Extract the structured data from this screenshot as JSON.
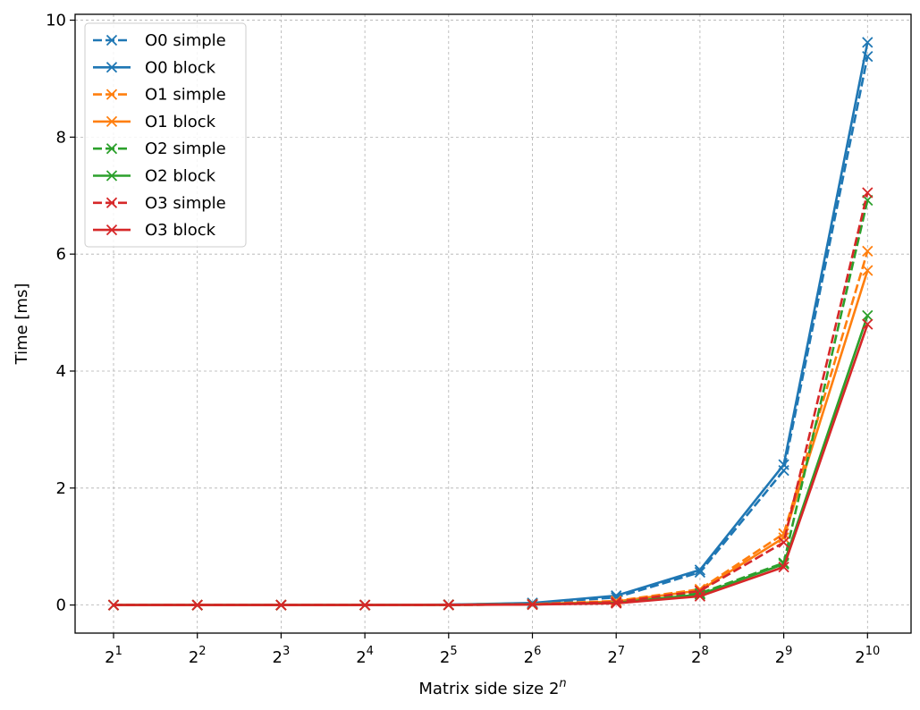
{
  "chart_data": {
    "type": "line",
    "xlabel": "Matrix side size 2",
    "xlabel_sup": "n",
    "ylabel": "Time [ms]",
    "x_exponents": [
      1,
      2,
      3,
      4,
      5,
      6,
      7,
      8,
      9,
      10
    ],
    "x_tick_labels": [
      {
        "base": "2",
        "exp": "1"
      },
      {
        "base": "2",
        "exp": "2"
      },
      {
        "base": "2",
        "exp": "3"
      },
      {
        "base": "2",
        "exp": "4"
      },
      {
        "base": "2",
        "exp": "5"
      },
      {
        "base": "2",
        "exp": "6"
      },
      {
        "base": "2",
        "exp": "7"
      },
      {
        "base": "2",
        "exp": "8"
      },
      {
        "base": "2",
        "exp": "9"
      },
      {
        "base": "2",
        "exp": "10"
      }
    ],
    "ylim": [
      -0.48,
      10.1
    ],
    "y_ticks": [
      0,
      2,
      4,
      6,
      8,
      10
    ],
    "y_tick_labels": [
      "0",
      "2",
      "4",
      "6",
      "8",
      "10"
    ],
    "grid": true,
    "legend_position": "top-left",
    "marker": "x",
    "series": [
      {
        "name": "O0 simple",
        "color": "#1f77b4",
        "dash": "dashed",
        "values": [
          0.0,
          0.0,
          0.0,
          0.0,
          0.005,
          0.03,
          0.13,
          0.56,
          2.3,
          9.38
        ]
      },
      {
        "name": "O0 block",
        "color": "#1f77b4",
        "dash": "solid",
        "values": [
          0.0,
          0.0,
          0.0,
          0.0,
          0.006,
          0.035,
          0.16,
          0.6,
          2.4,
          9.62
        ]
      },
      {
        "name": "O1 simple",
        "color": "#ff7f0e",
        "dash": "dashed",
        "values": [
          0.0,
          0.0,
          0.0,
          0.0,
          0.003,
          0.015,
          0.07,
          0.27,
          1.22,
          6.05
        ]
      },
      {
        "name": "O1 block",
        "color": "#ff7f0e",
        "dash": "solid",
        "values": [
          0.0,
          0.0,
          0.0,
          0.0,
          0.003,
          0.015,
          0.06,
          0.25,
          1.15,
          5.72
        ]
      },
      {
        "name": "O2 simple",
        "color": "#2ca02c",
        "dash": "dashed",
        "values": [
          0.0,
          0.0,
          0.0,
          0.0,
          0.002,
          0.01,
          0.04,
          0.2,
          0.72,
          6.92
        ]
      },
      {
        "name": "O2 block",
        "color": "#2ca02c",
        "dash": "solid",
        "values": [
          0.0,
          0.0,
          0.0,
          0.0,
          0.002,
          0.01,
          0.04,
          0.18,
          0.7,
          4.95
        ]
      },
      {
        "name": "O3 simple",
        "color": "#d62728",
        "dash": "dashed",
        "values": [
          0.0,
          0.0,
          0.0,
          0.0,
          0.002,
          0.01,
          0.05,
          0.24,
          1.07,
          7.05
        ]
      },
      {
        "name": "O3 block",
        "color": "#d62728",
        "dash": "solid",
        "values": [
          0.0,
          0.0,
          0.0,
          0.0,
          0.002,
          0.008,
          0.03,
          0.15,
          0.65,
          4.8
        ]
      }
    ]
  }
}
